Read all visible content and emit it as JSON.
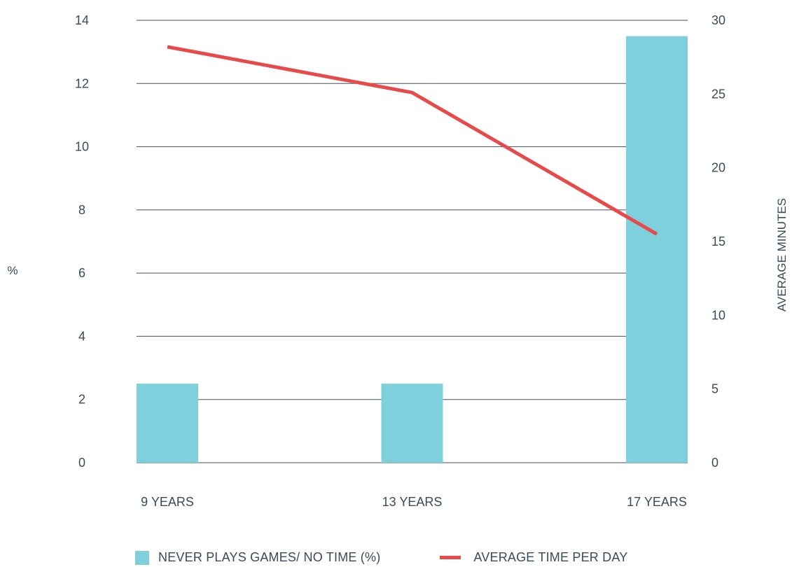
{
  "chart_data": {
    "type": "bar",
    "categories": [
      "9 YEARS",
      "13 YEARS",
      "17 YEARS"
    ],
    "series": [
      {
        "name": "NEVER PLAYS GAMES/ NO TIME (%)",
        "type": "bar",
        "axis": "left",
        "values": [
          2.5,
          2.5,
          13.5
        ],
        "color": "#7ed0dc"
      },
      {
        "name": "AVERAGE TIME PER DAY",
        "type": "line",
        "axis": "right",
        "values": [
          28.2,
          25.1,
          15.5
        ],
        "color": "#e84a4a"
      }
    ],
    "y_left": {
      "label": "%",
      "ylim": [
        0,
        14
      ],
      "ticks": [
        "0",
        "2",
        "4",
        "6",
        "8",
        "10",
        "12",
        "14"
      ]
    },
    "y_right": {
      "label": "AVERAGE MINUTES",
      "ylim": [
        0,
        30
      ],
      "ticks": [
        "0",
        "5",
        "10",
        "15",
        "20",
        "25",
        "30"
      ]
    },
    "grid": true,
    "legend_position": "bottom"
  }
}
